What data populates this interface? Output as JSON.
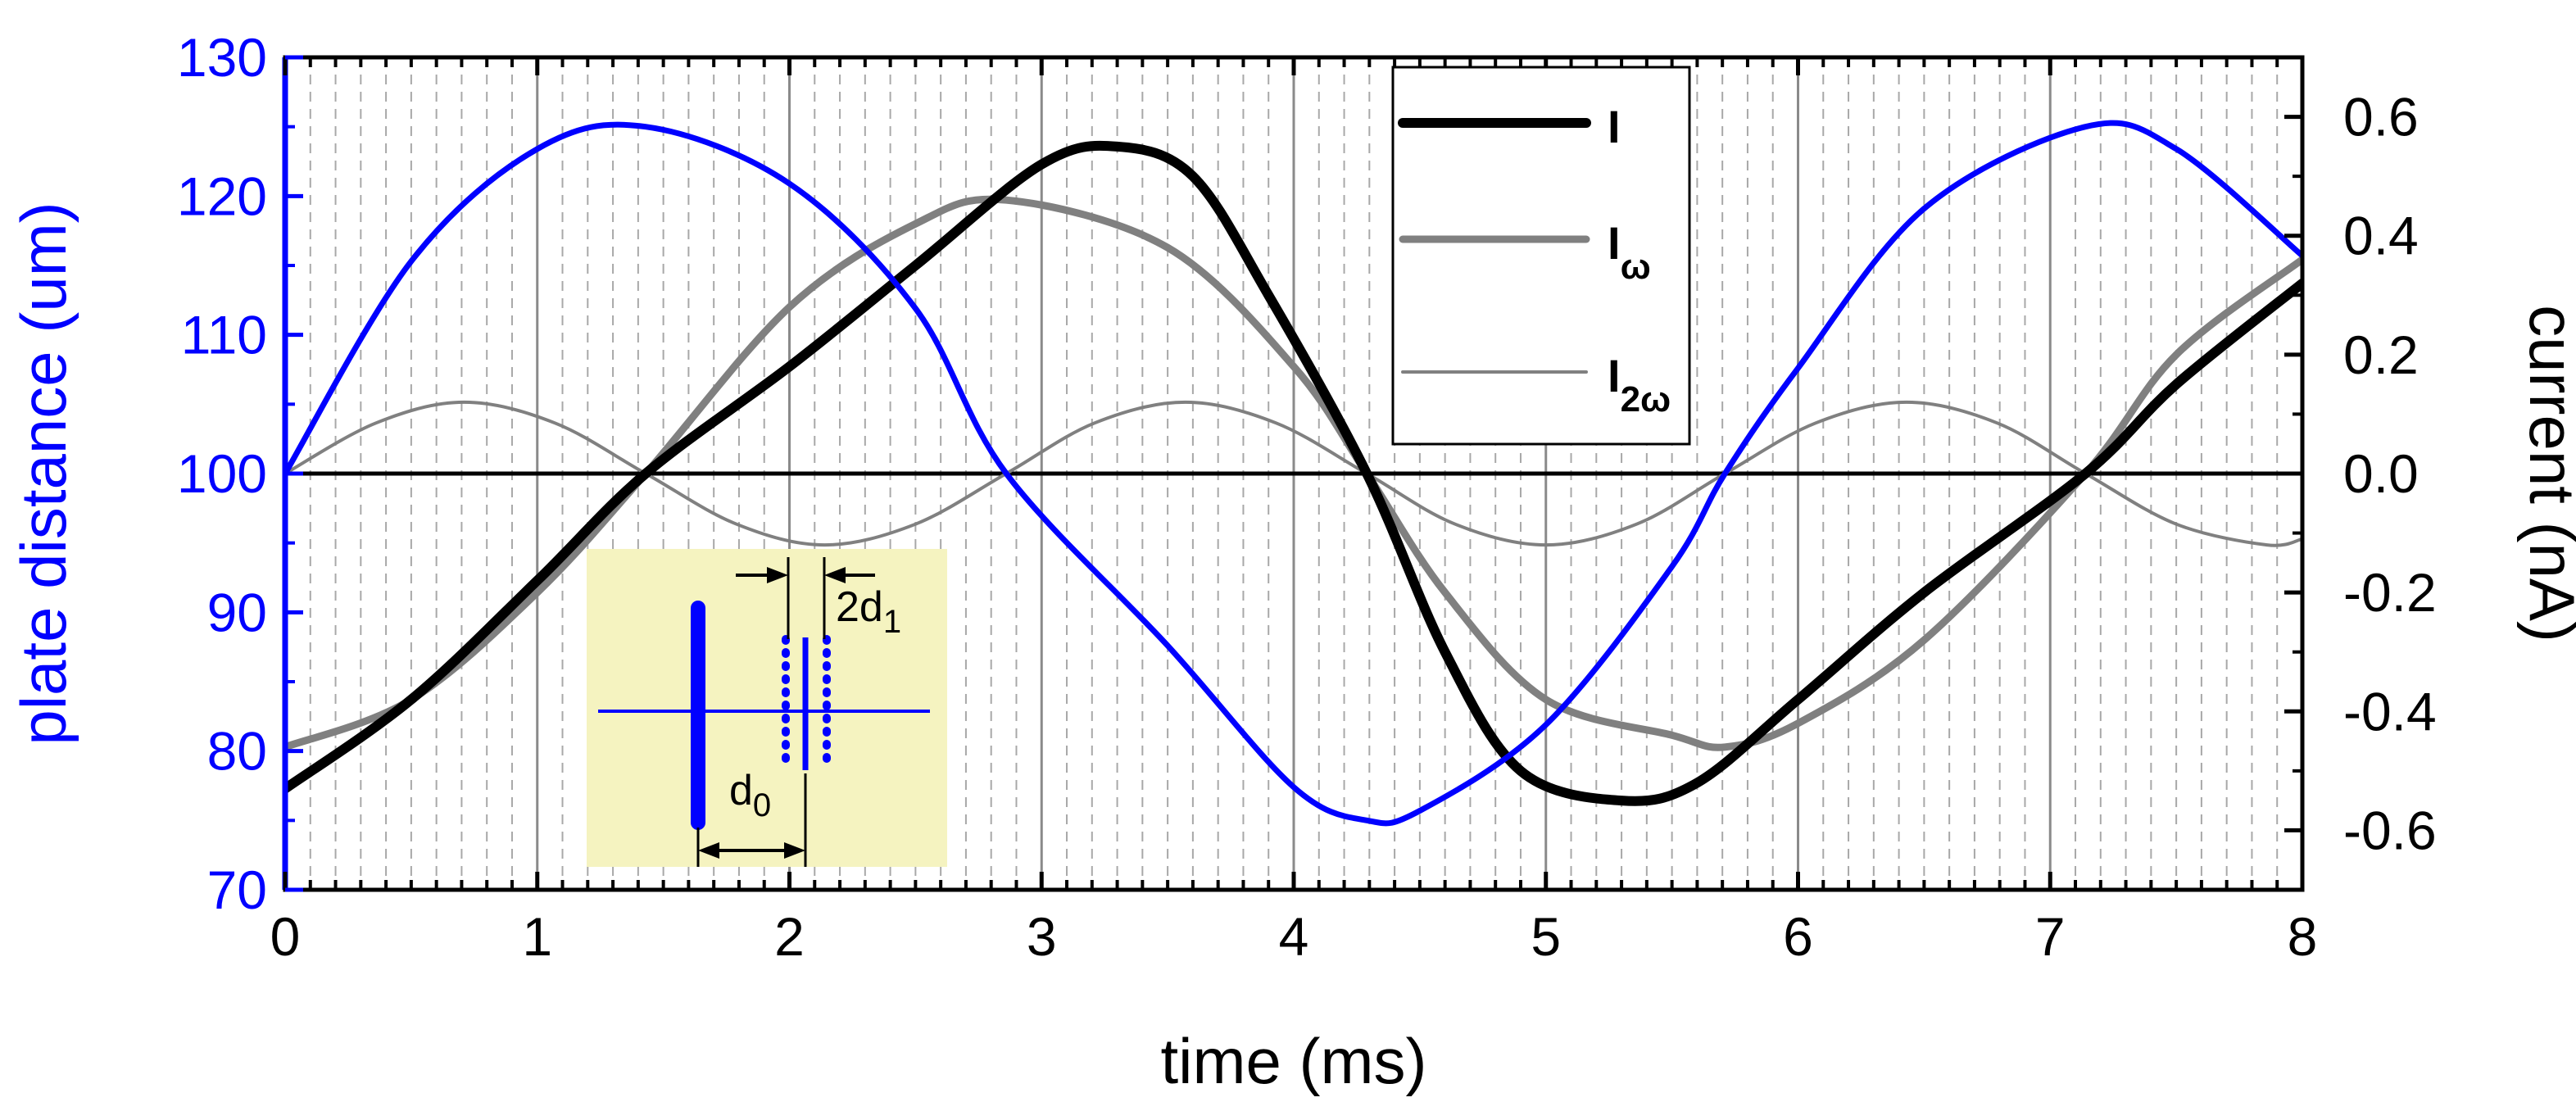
{
  "chart_data": {
    "type": "line",
    "xlabel": "time (ms)",
    "ylabel_left": "plate distance (um)",
    "ylabel_right": "current (nA)",
    "xlim": [
      0,
      8
    ],
    "ylim_left": [
      70,
      130
    ],
    "ylim_right": [
      -0.7,
      0.7
    ],
    "x_ticks": [
      "0",
      "1",
      "2",
      "3",
      "4",
      "5",
      "6",
      "7",
      "8"
    ],
    "y_left_ticks": [
      "70",
      "80",
      "90",
      "100",
      "110",
      "120",
      "130"
    ],
    "y_right_ticks": [
      "-0.6",
      "-0.4",
      "-0.2",
      "0.0",
      "0.2",
      "0.4",
      "0.6"
    ],
    "grid": true,
    "legend_position": "top-right",
    "legend": [
      {
        "main": "I",
        "sub": ""
      },
      {
        "main": "I",
        "sub": "ω"
      },
      {
        "main": "I",
        "sub": "2ω"
      }
    ],
    "colors": {
      "distance": "#0000ff",
      "I": "#000000",
      "I_omega": "#808080",
      "I_2omega": "#808080",
      "inset_bg": "#f5f3c0"
    },
    "series": [
      {
        "axis": "left",
        "x": [
          0,
          0.5,
          1.0,
          1.43,
          2.0,
          2.5,
          2.86,
          3.5,
          4.0,
          4.29,
          4.5,
          5.0,
          5.5,
          5.71,
          6.0,
          6.5,
          7.14,
          7.5,
          8.0
        ],
        "y": [
          100,
          115.3,
          123.4,
          125,
          120.9,
          111.9,
          100,
          87.6,
          77.4,
          75,
          75.7,
          81.9,
          93.3,
          100,
          107.6,
          119.1,
          125,
          123.4,
          115.7
        ]
      },
      {
        "name": "I",
        "axis": "right",
        "x": [
          0,
          0.5,
          1.0,
          1.43,
          2.0,
          2.5,
          3.0,
          3.3,
          3.6,
          3.9,
          4.29,
          4.6,
          4.9,
          5.3,
          5.6,
          6.0,
          6.5,
          7.14,
          7.5,
          8.0
        ],
        "y": [
          -0.53,
          -0.38,
          -0.18,
          0.0,
          0.18,
          0.35,
          0.52,
          0.55,
          0.5,
          0.3,
          0.0,
          -0.3,
          -0.5,
          -0.55,
          -0.52,
          -0.38,
          -0.2,
          0.0,
          0.15,
          0.32
        ]
      },
      {
        "name": "Iω",
        "axis": "right",
        "x": [
          0,
          0.5,
          1.0,
          1.43,
          2.0,
          2.5,
          2.86,
          3.5,
          4.0,
          4.29,
          4.6,
          5.0,
          5.5,
          5.71,
          6.0,
          6.5,
          7.14,
          7.5,
          8.0
        ],
        "y": [
          -0.46,
          -0.38,
          -0.2,
          0.0,
          0.28,
          0.42,
          0.46,
          0.38,
          0.18,
          0.0,
          -0.2,
          -0.38,
          -0.44,
          -0.46,
          -0.42,
          -0.28,
          0.0,
          0.2,
          0.36
        ]
      },
      {
        "name": "I2ω",
        "axis": "right",
        "x": [
          0,
          0.36,
          0.71,
          1.07,
          1.43,
          1.79,
          2.14,
          2.5,
          2.86,
          3.21,
          3.57,
          3.93,
          4.29,
          4.64,
          5.0,
          5.36,
          5.71,
          6.07,
          6.43,
          6.79,
          7.14,
          7.5,
          7.86,
          8.0
        ],
        "y": [
          0.0,
          0.085,
          0.12,
          0.085,
          0.0,
          -0.085,
          -0.12,
          -0.085,
          0.0,
          0.085,
          0.12,
          0.085,
          0.0,
          -0.085,
          -0.12,
          -0.085,
          0.0,
          0.085,
          0.12,
          0.085,
          0.0,
          -0.085,
          -0.12,
          -0.11
        ]
      }
    ],
    "inset": {
      "label_d0": "d",
      "label_d0_sub": "0",
      "label_2d1": "2d",
      "label_2d1_sub": "1"
    }
  }
}
